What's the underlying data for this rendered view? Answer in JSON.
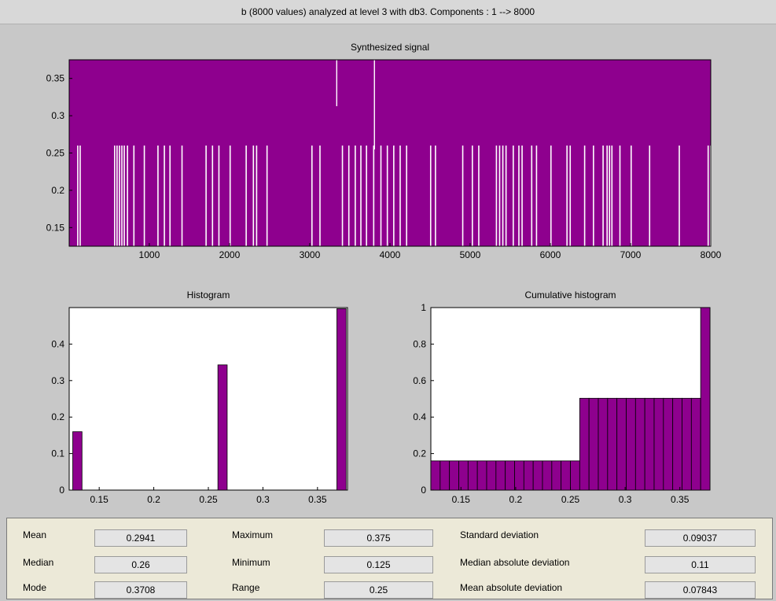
{
  "window": {
    "title": "b (8000 values) analyzed at level 3 with db3.  Components :   1 --> 8000"
  },
  "colors": {
    "plot_fill": "#8e008e",
    "plot_background_white": "#ffffff"
  },
  "chart_data": [
    {
      "type": "area",
      "title": "Synthesized signal",
      "xlabel": "",
      "ylabel": "",
      "xlim": [
        1,
        8000
      ],
      "ylim": [
        0.125,
        0.375
      ],
      "x_ticks": [
        1000,
        2000,
        3000,
        4000,
        5000,
        6000,
        7000,
        8000
      ],
      "y_ticks": [
        0.15,
        0.2,
        0.25,
        0.3,
        0.35
      ],
      "levels": [
        0.125,
        0.26,
        0.3708,
        0.375
      ],
      "low_dips_x": [
        100,
        130,
        560,
        590,
        620,
        650,
        680,
        720,
        800,
        930,
        1100,
        1180,
        1250,
        1400,
        1700,
        1780,
        1860,
        2000,
        2200,
        2290,
        2330,
        2460,
        3020,
        3120,
        3400,
        3480,
        3560,
        3630,
        3700,
        3790,
        3880,
        3960,
        4040,
        4120,
        4200,
        4500,
        4560,
        4900,
        5020,
        5100,
        5320,
        5360,
        5400,
        5440,
        5530,
        5600,
        5640,
        5760,
        5820,
        6000,
        6200,
        6240,
        6420,
        6530,
        6650,
        6700,
        6730,
        6760,
        6860,
        7000,
        7230,
        7600,
        7960,
        7990
      ],
      "mid_dips_x": [
        3330,
        3800
      ]
    },
    {
      "type": "bar",
      "title": "Histogram",
      "xlim": [
        0.1225,
        0.3775
      ],
      "ylim": [
        0,
        0.5
      ],
      "x_ticks": [
        0.15,
        0.2,
        0.25,
        0.3,
        0.35
      ],
      "y_ticks": [
        0,
        0.1,
        0.2,
        0.3,
        0.4
      ],
      "bins": [
        {
          "x": 0.13,
          "value": 0.16
        },
        {
          "x": 0.263,
          "value": 0.343
        },
        {
          "x": 0.372,
          "value": 0.497
        }
      ]
    },
    {
      "type": "bar",
      "title": "Cumulative histogram",
      "xlim": [
        0.1225,
        0.3775
      ],
      "ylim": [
        0,
        1
      ],
      "x_ticks": [
        0.15,
        0.2,
        0.25,
        0.3,
        0.35
      ],
      "y_ticks": [
        0,
        0.2,
        0.4,
        0.6,
        0.8,
        1
      ],
      "bin_count": 30,
      "steps": [
        {
          "from": 0.1225,
          "to": 0.259,
          "value": 0.16
        },
        {
          "from": 0.259,
          "to": 0.369,
          "value": 0.503
        },
        {
          "from": 0.369,
          "to": 0.3775,
          "value": 1.0
        }
      ]
    }
  ],
  "stats": {
    "mean": {
      "label": "Mean",
      "value": "0.2941"
    },
    "median": {
      "label": "Median",
      "value": "0.26"
    },
    "mode": {
      "label": "Mode",
      "value": "0.3708"
    },
    "maximum": {
      "label": "Maximum",
      "value": "0.375"
    },
    "minimum": {
      "label": "Minimum",
      "value": "0.125"
    },
    "range": {
      "label": "Range",
      "value": "0.25"
    },
    "std": {
      "label": "Standard deviation",
      "value": "0.09037"
    },
    "mad_median": {
      "label": "Median absolute deviation",
      "value": "0.11"
    },
    "mad_mean": {
      "label": "Mean absolute deviation",
      "value": "0.07843"
    }
  }
}
